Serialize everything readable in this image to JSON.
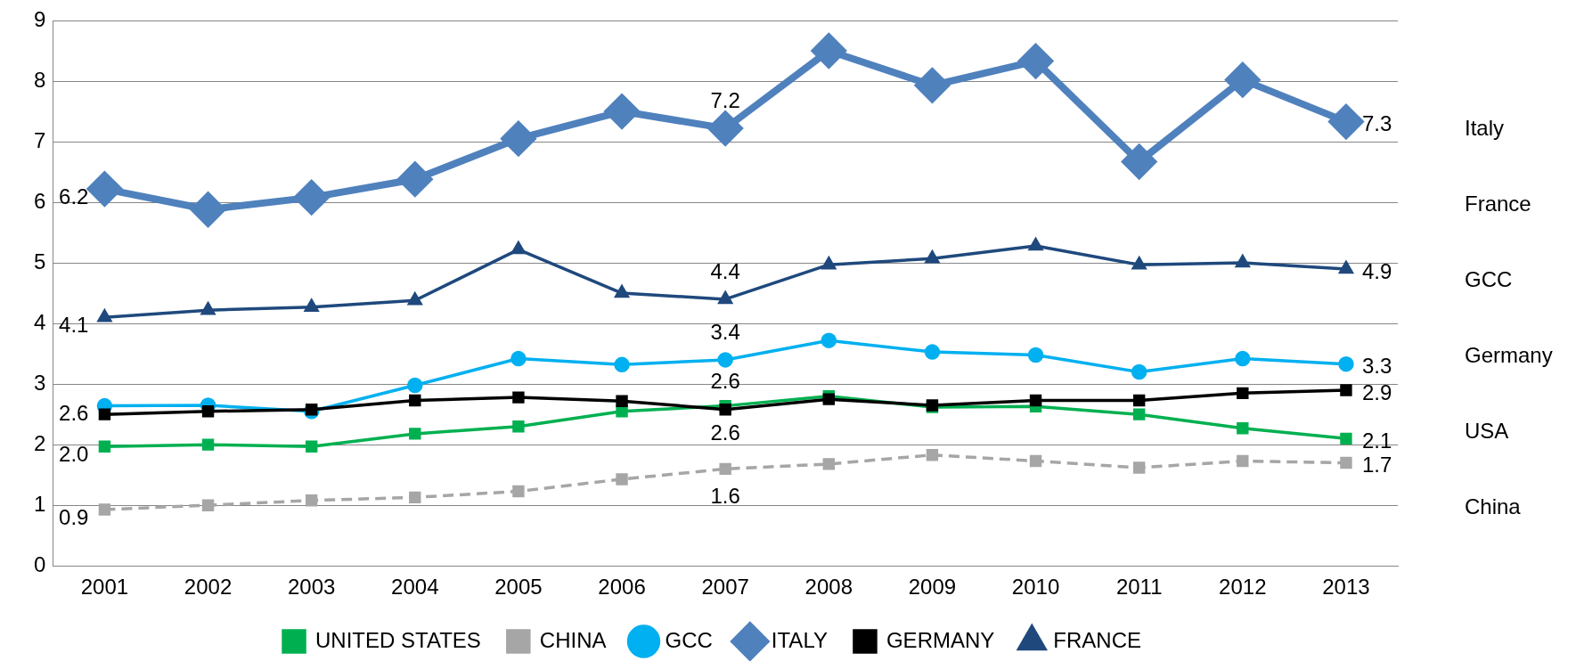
{
  "chart_data": {
    "type": "line",
    "categories": [
      "2001",
      "2002",
      "2003",
      "2004",
      "2005",
      "2006",
      "2007",
      "2008",
      "2009",
      "2010",
      "2011",
      "2012",
      "2013"
    ],
    "series": [
      {
        "name": "UNITED STATES",
        "color": "#00b050",
        "marker": "square",
        "line_style": "solid",
        "values": [
          1.97,
          2.0,
          1.97,
          2.18,
          2.3,
          2.55,
          2.64,
          2.8,
          2.62,
          2.63,
          2.5,
          2.27,
          2.1
        ],
        "value_labels": [
          "2.0",
          null,
          null,
          null,
          null,
          null,
          "2.6",
          null,
          null,
          null,
          null,
          null,
          "2.1"
        ]
      },
      {
        "name": "CHINA",
        "color": "#a6a6a6",
        "marker": "square",
        "line_style": "dashed",
        "values": [
          0.93,
          1.0,
          1.08,
          1.13,
          1.23,
          1.43,
          1.6,
          1.68,
          1.83,
          1.73,
          1.62,
          1.73,
          1.7
        ],
        "value_labels": [
          "0.9",
          null,
          null,
          null,
          null,
          null,
          "1.6",
          null,
          null,
          null,
          null,
          null,
          "1.7"
        ]
      },
      {
        "name": "GCC",
        "color": "#00b0f0",
        "marker": "circle",
        "line_style": "solid",
        "values": [
          2.64,
          2.65,
          2.55,
          2.98,
          3.42,
          3.32,
          3.4,
          3.72,
          3.53,
          3.48,
          3.2,
          3.42,
          3.33
        ],
        "value_labels": [
          "2.6",
          null,
          null,
          null,
          null,
          null,
          "3.4",
          null,
          null,
          null,
          null,
          null,
          "3.3"
        ]
      },
      {
        "name": "ITALY",
        "color": "#4f81bd",
        "marker": "diamond",
        "line_style": "solid",
        "values": [
          6.22,
          5.88,
          6.08,
          6.38,
          7.05,
          7.5,
          7.22,
          8.5,
          7.93,
          8.33,
          6.67,
          8.02,
          7.33
        ],
        "value_labels": [
          "6.2",
          null,
          null,
          null,
          null,
          null,
          "7.2",
          null,
          null,
          null,
          null,
          null,
          "7.3"
        ]
      },
      {
        "name": "GERMANY",
        "color": "#000000",
        "marker": "square",
        "line_style": "solid",
        "values": [
          2.5,
          2.55,
          2.58,
          2.73,
          2.78,
          2.72,
          2.58,
          2.75,
          2.65,
          2.73,
          2.73,
          2.85,
          2.9
        ],
        "value_labels": [
          null,
          null,
          null,
          null,
          null,
          null,
          "2.6",
          null,
          null,
          null,
          null,
          null,
          "2.9"
        ]
      },
      {
        "name": "FRANCE",
        "color": "#1f497d",
        "marker": "triangle",
        "line_style": "solid",
        "values": [
          4.1,
          4.22,
          4.27,
          4.38,
          5.22,
          4.5,
          4.4,
          4.97,
          5.07,
          5.28,
          4.97,
          5.0,
          4.9
        ],
        "value_labels": [
          "4.1",
          null,
          null,
          null,
          null,
          null,
          "4.4",
          null,
          null,
          null,
          null,
          null,
          "4.9"
        ]
      }
    ],
    "ylim": [
      0,
      9
    ],
    "yticks": [
      0,
      1,
      2,
      3,
      4,
      5,
      6,
      7,
      8,
      9
    ],
    "grid": "y",
    "legend": "bottom",
    "annotations": [
      "Italy",
      "France",
      "GCC",
      "Germany",
      "USA",
      "China"
    ]
  }
}
